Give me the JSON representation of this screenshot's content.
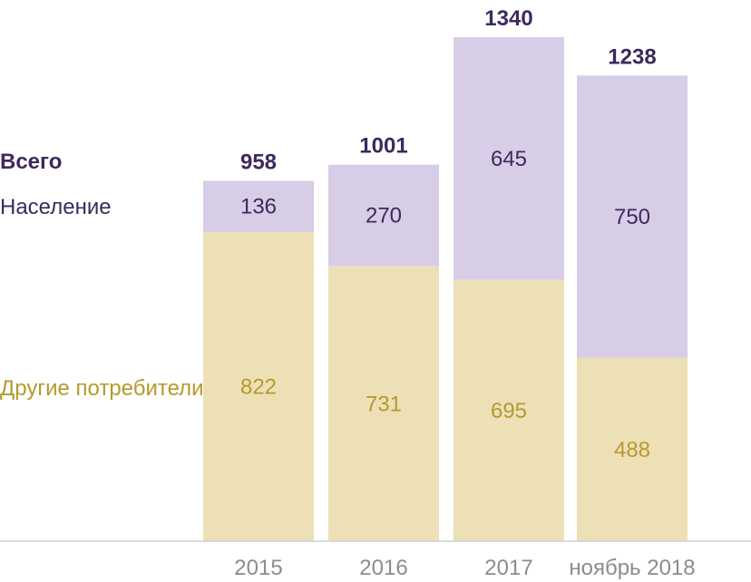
{
  "chart_data": {
    "type": "bar",
    "stacked": true,
    "categories": [
      "2015",
      "2016",
      "2017",
      "ноябрь 2018"
    ],
    "series": [
      {
        "name": "Другие потребители",
        "values": [
          822,
          731,
          695,
          488
        ],
        "color": "#ede0b7",
        "label_color": "#b59a2c"
      },
      {
        "name": "Население",
        "values": [
          136,
          270,
          645,
          750
        ],
        "color": "#d8cde6",
        "label_color": "#3d2a5c"
      }
    ],
    "totals": [
      958,
      1001,
      1340,
      1238
    ],
    "totals_label": "Всего",
    "totals_color": "#3d2a5c",
    "axis_color": "#cfcfcf",
    "tick_color": "#8c8c8c",
    "legend_placement": "left",
    "grid": false
  }
}
